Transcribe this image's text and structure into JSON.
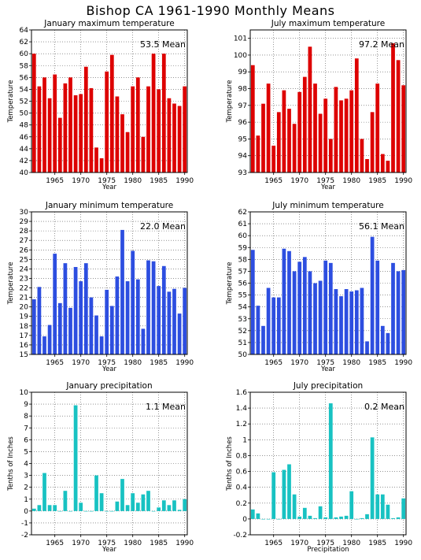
{
  "title": "Bishop CA   1961-1990 Monthly Means",
  "chart_data": [
    {
      "type": "bar",
      "title": "January maximum temperature",
      "xlabel": "Year",
      "ylabel": "Temperature",
      "color": "#dd0000",
      "mean_label": "53.5  Mean",
      "ylim": [
        40,
        64
      ],
      "yticks": [
        40,
        42,
        44,
        46,
        48,
        50,
        52,
        54,
        56,
        58,
        60,
        62,
        64
      ],
      "xlim": [
        1961,
        1990
      ],
      "xticks": [
        1965,
        1970,
        1975,
        1980,
        1985,
        1990
      ],
      "x": [
        1961,
        1962,
        1963,
        1964,
        1965,
        1966,
        1967,
        1968,
        1969,
        1970,
        1971,
        1972,
        1973,
        1974,
        1975,
        1976,
        1977,
        1978,
        1979,
        1980,
        1981,
        1982,
        1983,
        1984,
        1985,
        1986,
        1987,
        1988,
        1989,
        1990
      ],
      "values": [
        60.0,
        54.5,
        56.0,
        52.5,
        56.5,
        49.2,
        55.0,
        56.0,
        53.0,
        53.2,
        57.8,
        54.2,
        44.2,
        42.4,
        57.0,
        59.8,
        52.8,
        49.8,
        46.8,
        54.5,
        56.0,
        46.0,
        54.5,
        60.0,
        54.0,
        60.0,
        52.5,
        51.6,
        51.2,
        54.5
      ]
    },
    {
      "type": "bar",
      "title": "July maximum temperature",
      "xlabel": "Year",
      "ylabel": "Temperature",
      "color": "#dd0000",
      "mean_label": "97.2  Mean",
      "ylim": [
        93,
        101.5
      ],
      "yticks": [
        93,
        94,
        95,
        96,
        97,
        98,
        99,
        100,
        101
      ],
      "xlim": [
        1961,
        1990
      ],
      "xticks": [
        1965,
        1970,
        1975,
        1980,
        1985,
        1990
      ],
      "x": [
        1961,
        1962,
        1963,
        1964,
        1965,
        1966,
        1967,
        1968,
        1969,
        1970,
        1971,
        1972,
        1973,
        1974,
        1975,
        1976,
        1977,
        1978,
        1979,
        1980,
        1981,
        1982,
        1983,
        1984,
        1985,
        1986,
        1987,
        1988,
        1989,
        1990
      ],
      "values": [
        99.4,
        95.2,
        97.1,
        98.3,
        94.6,
        96.6,
        97.9,
        96.8,
        95.9,
        97.8,
        98.7,
        100.5,
        98.3,
        96.5,
        97.4,
        95.0,
        98.1,
        97.3,
        97.4,
        97.9,
        99.8,
        95.0,
        93.8,
        96.6,
        98.3,
        94.1,
        93.7,
        100.7,
        99.7,
        98.2
      ]
    },
    {
      "type": "bar",
      "title": "January minimum temperature",
      "xlabel": "Year",
      "ylabel": "Temperature",
      "color": "#2d4ee0",
      "mean_label": "22.0  Mean",
      "ylim": [
        15,
        30
      ],
      "yticks": [
        15,
        16,
        17,
        18,
        19,
        20,
        21,
        22,
        23,
        24,
        25,
        26,
        27,
        28,
        29,
        30
      ],
      "xlim": [
        1961,
        1990
      ],
      "xticks": [
        1965,
        1970,
        1975,
        1980,
        1985,
        1990
      ],
      "x": [
        1961,
        1962,
        1963,
        1964,
        1965,
        1966,
        1967,
        1968,
        1969,
        1970,
        1971,
        1972,
        1973,
        1974,
        1975,
        1976,
        1977,
        1978,
        1979,
        1980,
        1981,
        1982,
        1983,
        1984,
        1985,
        1986,
        1987,
        1988,
        1989,
        1990
      ],
      "values": [
        20.8,
        22.1,
        16.9,
        18.1,
        25.6,
        20.4,
        24.6,
        19.9,
        24.2,
        22.7,
        24.6,
        21.0,
        19.1,
        16.9,
        21.8,
        20.1,
        23.2,
        28.1,
        22.7,
        25.9,
        22.9,
        17.7,
        24.9,
        24.8,
        22.2,
        24.3,
        21.6,
        21.9,
        19.3,
        22.0
      ]
    },
    {
      "type": "bar",
      "title": "July minimum temperature",
      "xlabel": "Year",
      "ylabel": "Temperature",
      "color": "#2d4ee0",
      "mean_label": "56.1  Mean",
      "ylim": [
        50,
        62
      ],
      "yticks": [
        50,
        51,
        52,
        53,
        54,
        55,
        56,
        57,
        58,
        59,
        60,
        61,
        62
      ],
      "xlim": [
        1961,
        1990
      ],
      "xticks": [
        1965,
        1970,
        1975,
        1980,
        1985,
        1990
      ],
      "x": [
        1961,
        1962,
        1963,
        1964,
        1965,
        1966,
        1967,
        1968,
        1969,
        1970,
        1971,
        1972,
        1973,
        1974,
        1975,
        1976,
        1977,
        1978,
        1979,
        1980,
        1981,
        1982,
        1983,
        1984,
        1985,
        1986,
        1987,
        1988,
        1989,
        1990
      ],
      "values": [
        58.8,
        54.1,
        52.4,
        55.6,
        54.8,
        54.8,
        58.9,
        58.7,
        57.0,
        57.8,
        58.2,
        57.0,
        56.0,
        56.2,
        57.9,
        57.7,
        55.5,
        54.9,
        55.5,
        55.3,
        55.4,
        55.6,
        51.1,
        59.9,
        57.9,
        52.4,
        51.8,
        57.7,
        57.0,
        57.1
      ]
    },
    {
      "type": "bar",
      "title": "January precipitation",
      "xlabel": "Year",
      "ylabel": "Tenths of Inches",
      "color": "#18c2c2",
      "mean_label": "1.1  Mean",
      "ylim": [
        -2,
        10
      ],
      "yticks": [
        -2,
        -1,
        0,
        1,
        2,
        3,
        4,
        5,
        6,
        7,
        8,
        9,
        10
      ],
      "xlim": [
        1961,
        1990
      ],
      "xticks": [
        1965,
        1970,
        1975,
        1980,
        1985,
        1990
      ],
      "x": [
        1961,
        1962,
        1963,
        1964,
        1965,
        1966,
        1967,
        1968,
        1969,
        1970,
        1971,
        1972,
        1973,
        1974,
        1975,
        1976,
        1977,
        1978,
        1979,
        1980,
        1981,
        1982,
        1983,
        1984,
        1985,
        1986,
        1987,
        1988,
        1989,
        1990
      ],
      "values": [
        0.2,
        0.5,
        3.2,
        0.5,
        0.5,
        0.0,
        1.7,
        0.0,
        8.9,
        0.7,
        0.0,
        0.0,
        3.0,
        1.5,
        0.0,
        0.0,
        0.8,
        2.7,
        0.5,
        1.5,
        0.7,
        1.4,
        1.7,
        0.0,
        0.3,
        0.9,
        0.5,
        0.9,
        0.1,
        1.0
      ]
    },
    {
      "type": "bar",
      "title": "July precipitation",
      "xlabel": "Precipitation",
      "ylabel": "Tenths of Inches",
      "color": "#18c2c2",
      "mean_label": "0.2  Mean",
      "ylim": [
        -0.2,
        1.6
      ],
      "yticks": [
        -0.2,
        0,
        0.2,
        0.4,
        0.6,
        0.8,
        1,
        1.2,
        1.4,
        1.6
      ],
      "xlim": [
        1961,
        1990
      ],
      "xticks": [
        1965,
        1970,
        1975,
        1980,
        1985,
        1990
      ],
      "x": [
        1961,
        1962,
        1963,
        1964,
        1965,
        1966,
        1967,
        1968,
        1969,
        1970,
        1971,
        1972,
        1973,
        1974,
        1975,
        1976,
        1977,
        1978,
        1979,
        1980,
        1981,
        1982,
        1983,
        1984,
        1985,
        1986,
        1987,
        1988,
        1989,
        1990
      ],
      "values": [
        0.12,
        0.07,
        0.0,
        0.0,
        0.59,
        0.0,
        0.62,
        0.69,
        0.31,
        0.03,
        0.14,
        0.04,
        0.01,
        0.16,
        0.02,
        1.46,
        0.02,
        0.03,
        0.04,
        0.35,
        0.0,
        0.01,
        0.06,
        1.03,
        0.31,
        0.31,
        0.18,
        0.01,
        0.02,
        0.26
      ]
    }
  ]
}
